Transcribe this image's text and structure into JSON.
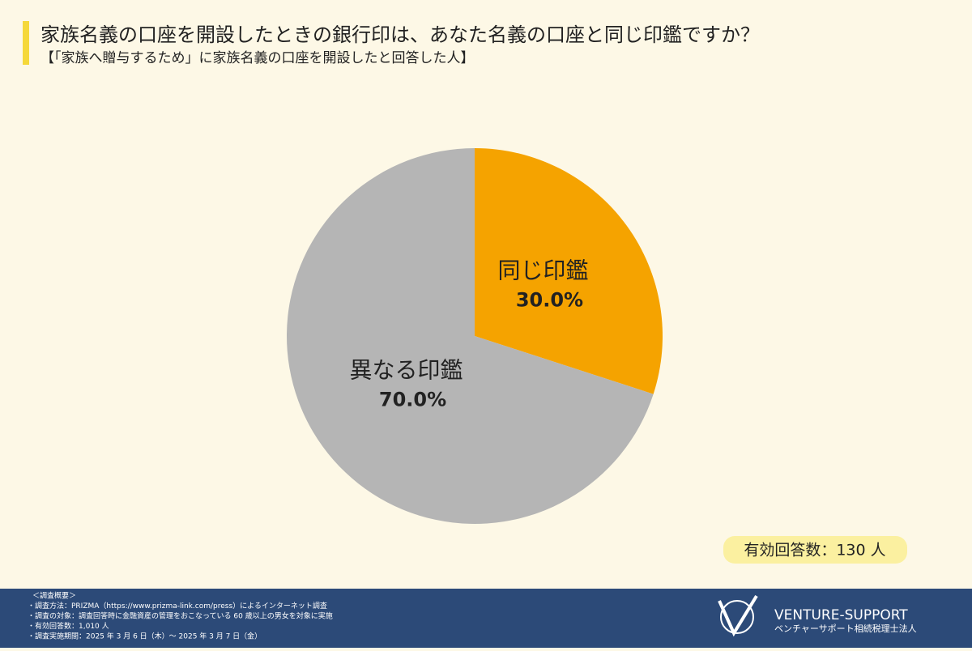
{
  "chart_data": {
    "type": "pie",
    "title": "家族名義の口座を開設したときの銀行印は、あなた名義の口座と同じ印鑑ですか？",
    "subtitle": "【「家族へ贈与するため」に家族名義の口座を開設したと回答した人】",
    "categories": [
      "同じ印鑑",
      "異なる印鑑"
    ],
    "values": [
      30.0,
      70.0
    ],
    "value_labels": [
      "30.0%",
      "70.0%"
    ],
    "colors": [
      "#f5a300",
      "#b5b5b5"
    ]
  },
  "note": "有効回答数：130 人",
  "footer": {
    "lines": [
      "＜調査概要＞",
      "・調査方法：PRIZMA（https://www.prizma-link.com/press）によるインターネット調査",
      "・調査の対象：調査回答時に金融資産の管理をおこなっている 60 歳以上の男女を対象に実施",
      "・有効回答数：1,010 人",
      "・調査実施期間：2025 年 3 月 6 日（木）～ 2025 年 3 月 7 日（金）"
    ]
  },
  "logo": {
    "name": "VENTURE-SUPPORT",
    "tagline": "ベンチャーサポート相続税理士法人"
  }
}
